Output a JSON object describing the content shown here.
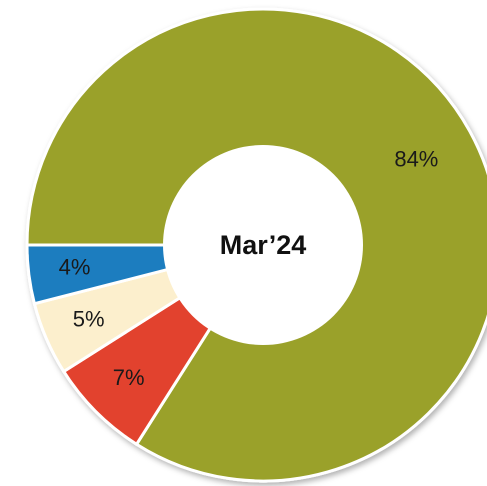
{
  "chart_data": {
    "type": "pie",
    "center_label": "Mar’24",
    "series": [
      {
        "values": [
          84,
          7,
          5,
          4
        ],
        "value_labels": [
          "84%",
          "7%",
          "5%",
          "4%"
        ],
        "colors": [
          "#9aa12b",
          "#e2432d",
          "#fcefcd",
          "#1e7dbf"
        ]
      }
    ]
  }
}
